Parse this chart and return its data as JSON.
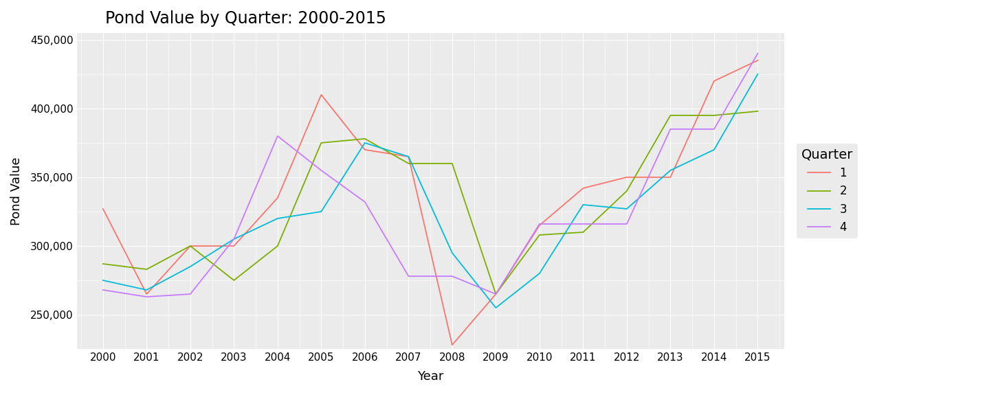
{
  "title": "Pond Value by Quarter: 2000-2015",
  "xlabel": "Year",
  "ylabel": "Pond Value",
  "years": [
    2000,
    2001,
    2002,
    2003,
    2004,
    2005,
    2006,
    2007,
    2008,
    2009,
    2010,
    2011,
    2012,
    2013,
    2014,
    2015
  ],
  "quarter1": [
    327000,
    265000,
    300000,
    300000,
    335000,
    410000,
    370000,
    365000,
    228000,
    265000,
    315000,
    342000,
    350000,
    350000,
    420000,
    435000
  ],
  "quarter2": [
    287000,
    283000,
    300000,
    275000,
    300000,
    375000,
    378000,
    360000,
    360000,
    265000,
    308000,
    310000,
    340000,
    395000,
    395000,
    398000
  ],
  "quarter3": [
    275000,
    268000,
    285000,
    305000,
    320000,
    325000,
    375000,
    365000,
    295000,
    255000,
    280000,
    330000,
    327000,
    355000,
    370000,
    425000
  ],
  "quarter4": [
    268000,
    263000,
    265000,
    305000,
    380000,
    355000,
    332000,
    278000,
    278000,
    265000,
    316000,
    316000,
    316000,
    385000,
    385000,
    440000
  ],
  "colors": {
    "1": "#F8766D",
    "2": "#7CAE00",
    "3": "#00BCD8",
    "4": "#C77CFF"
  },
  "ylim": [
    225000,
    455000
  ],
  "yticks": [
    250000,
    300000,
    350000,
    400000,
    450000
  ],
  "bg_color": "#EBEBEB",
  "grid_color": "white",
  "legend_title": "Quarter",
  "title_fontsize": 17,
  "axis_fontsize": 13,
  "tick_fontsize": 11,
  "legend_fontsize": 12
}
